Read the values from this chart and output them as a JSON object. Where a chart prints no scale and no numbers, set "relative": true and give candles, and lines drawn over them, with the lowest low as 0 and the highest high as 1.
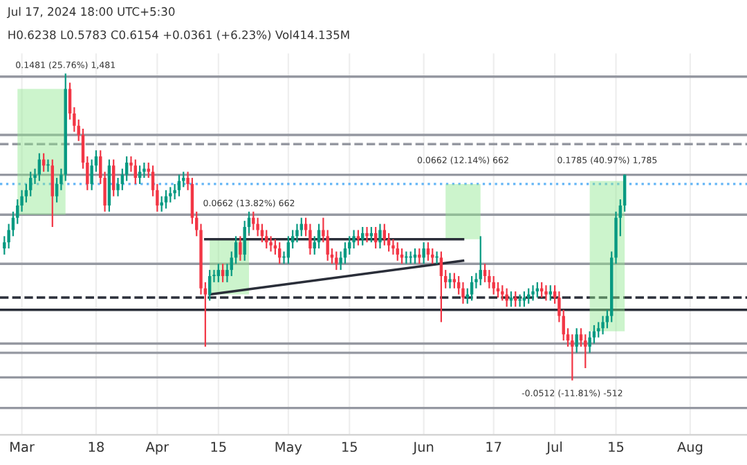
{
  "chart_data": {
    "type": "candlestick",
    "relative": true,
    "annotations": [
      "Jul 17, 2024 18:00 UTC+5:30",
      "H0.6238 L0.5783 C0.6154 +0.0361 (+6.23%) Vol414.135M",
      {
        "text": "0.1481 (25.76%) 1,481",
        "x": "2024-03-11",
        "y": 1.0
      },
      {
        "text": "0.0662 (13.82%) 662",
        "x": "2024-04-22",
        "y": 0.46
      },
      {
        "text": "0.0662 (12.14%) 662",
        "x": "2024-06-10",
        "y": 0.69
      },
      {
        "text": "0.1785 (40.97%) 1,785",
        "x": "2024-07-13",
        "y": 0.69
      },
      {
        "text": "-0.0512 (-11.81%) -512",
        "x": "2024-07-05",
        "y": 0.0
      }
    ],
    "colors": [
      "#089981",
      "#089981",
      "#089981",
      "#089981",
      "#089981",
      "#089981",
      "#089981",
      "#089981",
      "#089981",
      "#f23645",
      "#089981",
      "#f23645",
      "#089981",
      "#089981",
      "#089981",
      "#f23645",
      "#f23645",
      "#f23645",
      "#f23645",
      "#f23645",
      "#089981",
      "#089981",
      "#f23645",
      "#f23645",
      "#089981",
      "#f23645",
      "#089981",
      "#089981",
      "#089981",
      "#f23645",
      "#f23645",
      "#089981",
      "#089981",
      "#f23645",
      "#f23645",
      "#f23645",
      "#089981",
      "#089981",
      "#089981",
      "#089981",
      "#089981",
      "#089981",
      "#f23645",
      "#f23645",
      "#f23645",
      "#f23645",
      "#f23645",
      "#089981",
      "#089981",
      "#089981",
      "#f23645",
      "#089981",
      "#089981",
      "#089981",
      "#f23645",
      "#089981",
      "#089981",
      "#f23645",
      "#f23645",
      "#f23645",
      "#f23645",
      "#f23645",
      "#f23645",
      "#f23645",
      "#089981",
      "#089981",
      "#089981",
      "#089981",
      "#089981",
      "#f23645",
      "#f23645",
      "#089981",
      "#089981",
      "#f23645",
      "#f23645",
      "#f23645",
      "#f23645",
      "#089981",
      "#089981",
      "#089981",
      "#089981",
      "#f23645",
      "#089981",
      "#f23645",
      "#089981",
      "#f23645",
      "#089981",
      "#f23645",
      "#f23645",
      "#f23645",
      "#f23645",
      "#f23645",
      "#089981",
      "#089981",
      "#089981",
      "#f23645",
      "#089981",
      "#f23645",
      "#f23645",
      "#089981",
      "#f23645",
      "#f23645",
      "#089981",
      "#f23645",
      "#f23645",
      "#f23645",
      "#089981",
      "#089981",
      "#089981",
      "#089981",
      "#f23645",
      "#f23645",
      "#f23645",
      "#f23645",
      "#f23645",
      "#f23645",
      "#089981",
      "#f23645",
      "#089981",
      "#089981",
      "#089981",
      "#089981",
      "#089981",
      "#f23645",
      "#f23645",
      "#089981",
      "#f23645",
      "#f23645",
      "#f23645",
      "#f23645",
      "#f23645",
      "#089981",
      "#f23645",
      "#f23645",
      "#089981",
      "#089981",
      "#089981",
      "#089981",
      "#089981",
      "#089981",
      "#089981",
      "#089981",
      "#089981"
    ],
    "x": [
      "2024-02-26",
      "2024-02-27",
      "2024-02-28",
      "2024-02-29",
      "2024-03-01",
      "2024-03-02",
      "2024-03-03",
      "2024-03-04",
      "2024-03-05",
      "2024-03-06",
      "2024-03-07",
      "2024-03-08",
      "2024-03-09",
      "2024-03-10",
      "2024-03-11",
      "2024-03-12",
      "2024-03-13",
      "2024-03-14",
      "2024-03-15",
      "2024-03-16",
      "2024-03-17",
      "2024-03-18",
      "2024-03-19",
      "2024-03-20",
      "2024-03-21",
      "2024-03-22",
      "2024-03-23",
      "2024-03-24",
      "2024-03-25",
      "2024-03-26",
      "2024-03-27",
      "2024-03-28",
      "2024-03-29",
      "2024-03-30",
      "2024-03-31",
      "2024-04-01",
      "2024-04-02",
      "2024-04-03",
      "2024-04-04",
      "2024-04-05",
      "2024-04-06",
      "2024-04-07",
      "2024-04-08",
      "2024-04-09",
      "2024-04-10",
      "2024-04-11",
      "2024-04-12",
      "2024-04-13",
      "2024-04-14",
      "2024-04-15",
      "2024-04-16",
      "2024-04-17",
      "2024-04-18",
      "2024-04-19",
      "2024-04-20",
      "2024-04-21",
      "2024-04-22",
      "2024-04-23",
      "2024-04-24",
      "2024-04-25",
      "2024-04-26",
      "2024-04-27",
      "2024-04-28",
      "2024-04-29",
      "2024-04-30",
      "2024-05-01",
      "2024-05-02",
      "2024-05-03",
      "2024-05-04",
      "2024-05-05",
      "2024-05-06",
      "2024-05-07",
      "2024-05-08",
      "2024-05-09",
      "2024-05-10",
      "2024-05-11",
      "2024-05-12",
      "2024-05-13",
      "2024-05-14",
      "2024-05-15",
      "2024-05-16",
      "2024-05-17",
      "2024-05-18",
      "2024-05-19",
      "2024-05-20",
      "2024-05-21",
      "2024-05-22",
      "2024-05-23",
      "2024-05-24",
      "2024-05-25",
      "2024-05-26",
      "2024-05-27",
      "2024-05-28",
      "2024-05-29",
      "2024-05-30",
      "2024-05-31",
      "2024-06-01",
      "2024-06-02",
      "2024-06-03",
      "2024-06-04",
      "2024-06-05",
      "2024-06-06",
      "2024-06-07",
      "2024-06-08",
      "2024-06-09",
      "2024-06-10",
      "2024-06-11",
      "2024-06-12",
      "2024-06-13",
      "2024-06-14",
      "2024-06-15",
      "2024-06-16",
      "2024-06-17",
      "2024-06-18",
      "2024-06-19",
      "2024-06-20",
      "2024-06-21",
      "2024-06-22",
      "2024-06-23",
      "2024-06-24",
      "2024-06-25",
      "2024-06-26",
      "2024-06-27",
      "2024-06-28",
      "2024-06-29",
      "2024-06-30",
      "2024-07-01",
      "2024-07-02",
      "2024-07-03",
      "2024-07-04",
      "2024-07-05",
      "2024-07-06",
      "2024-07-07",
      "2024-07-08",
      "2024-07-09",
      "2024-07-10",
      "2024-07-11",
      "2024-07-12",
      "2024-07-13",
      "2024-07-14",
      "2024-07-15",
      "2024-07-16",
      "2024-07-17"
    ],
    "ohlc": [
      [
        0.43,
        0.47,
        0.41,
        0.45
      ],
      [
        0.45,
        0.51,
        0.43,
        0.49
      ],
      [
        0.49,
        0.55,
        0.47,
        0.53
      ],
      [
        0.53,
        0.59,
        0.51,
        0.57
      ],
      [
        0.57,
        0.62,
        0.55,
        0.6
      ],
      [
        0.6,
        0.64,
        0.58,
        0.62
      ],
      [
        0.62,
        0.68,
        0.6,
        0.66
      ],
      [
        0.66,
        0.69,
        0.64,
        0.67
      ],
      [
        0.67,
        0.74,
        0.65,
        0.72
      ],
      [
        0.72,
        0.74,
        0.68,
        0.7
      ],
      [
        0.7,
        0.72,
        0.68,
        0.7
      ],
      [
        0.7,
        0.72,
        0.5,
        0.6
      ],
      [
        0.6,
        0.66,
        0.58,
        0.64
      ],
      [
        0.64,
        0.69,
        0.62,
        0.67
      ],
      [
        0.67,
        1.0,
        0.65,
        0.95
      ],
      [
        0.95,
        0.97,
        0.85,
        0.87
      ],
      [
        0.87,
        0.89,
        0.81,
        0.83
      ],
      [
        0.83,
        0.85,
        0.78,
        0.8
      ],
      [
        0.8,
        0.82,
        0.69,
        0.71
      ],
      [
        0.71,
        0.73,
        0.62,
        0.64
      ],
      [
        0.64,
        0.72,
        0.62,
        0.7
      ],
      [
        0.7,
        0.75,
        0.68,
        0.73
      ],
      [
        0.73,
        0.75,
        0.64,
        0.66
      ],
      [
        0.66,
        0.68,
        0.55,
        0.57
      ],
      [
        0.57,
        0.72,
        0.55,
        0.7
      ],
      [
        0.7,
        0.72,
        0.6,
        0.62
      ],
      [
        0.62,
        0.66,
        0.6,
        0.64
      ],
      [
        0.64,
        0.69,
        0.62,
        0.67
      ],
      [
        0.67,
        0.73,
        0.65,
        0.71
      ],
      [
        0.71,
        0.73,
        0.68,
        0.7
      ],
      [
        0.7,
        0.72,
        0.64,
        0.66
      ],
      [
        0.66,
        0.7,
        0.64,
        0.68
      ],
      [
        0.68,
        0.71,
        0.66,
        0.69
      ],
      [
        0.69,
        0.71,
        0.66,
        0.68
      ],
      [
        0.68,
        0.7,
        0.6,
        0.62
      ],
      [
        0.62,
        0.64,
        0.55,
        0.57
      ],
      [
        0.57,
        0.6,
        0.55,
        0.58
      ],
      [
        0.58,
        0.62,
        0.56,
        0.6
      ],
      [
        0.6,
        0.63,
        0.58,
        0.61
      ],
      [
        0.61,
        0.64,
        0.59,
        0.62
      ],
      [
        0.62,
        0.67,
        0.6,
        0.65
      ],
      [
        0.65,
        0.68,
        0.63,
        0.66
      ],
      [
        0.66,
        0.68,
        0.62,
        0.64
      ],
      [
        0.64,
        0.66,
        0.51,
        0.53
      ],
      [
        0.53,
        0.55,
        0.47,
        0.49
      ],
      [
        0.49,
        0.51,
        0.28,
        0.3
      ],
      [
        0.3,
        0.32,
        0.11,
        0.28
      ],
      [
        0.28,
        0.36,
        0.26,
        0.34
      ],
      [
        0.34,
        0.36,
        0.32,
        0.34
      ],
      [
        0.34,
        0.38,
        0.32,
        0.36
      ],
      [
        0.36,
        0.38,
        0.32,
        0.34
      ],
      [
        0.34,
        0.38,
        0.32,
        0.36
      ],
      [
        0.36,
        0.42,
        0.34,
        0.4
      ],
      [
        0.4,
        0.47,
        0.38,
        0.45
      ],
      [
        0.45,
        0.47,
        0.39,
        0.41
      ],
      [
        0.41,
        0.52,
        0.39,
        0.5
      ],
      [
        0.5,
        0.55,
        0.48,
        0.53
      ],
      [
        0.53,
        0.55,
        0.49,
        0.51
      ],
      [
        0.51,
        0.53,
        0.47,
        0.49
      ],
      [
        0.49,
        0.51,
        0.45,
        0.47
      ],
      [
        0.47,
        0.49,
        0.43,
        0.45
      ],
      [
        0.45,
        0.47,
        0.42,
        0.44
      ],
      [
        0.44,
        0.46,
        0.41,
        0.43
      ],
      [
        0.43,
        0.45,
        0.38,
        0.4
      ],
      [
        0.4,
        0.42,
        0.38,
        0.4
      ],
      [
        0.4,
        0.47,
        0.38,
        0.45
      ],
      [
        0.45,
        0.49,
        0.43,
        0.47
      ],
      [
        0.47,
        0.51,
        0.45,
        0.49
      ],
      [
        0.49,
        0.53,
        0.47,
        0.51
      ],
      [
        0.51,
        0.53,
        0.47,
        0.49
      ],
      [
        0.49,
        0.51,
        0.41,
        0.43
      ],
      [
        0.43,
        0.47,
        0.41,
        0.45
      ],
      [
        0.45,
        0.51,
        0.43,
        0.49
      ],
      [
        0.49,
        0.53,
        0.45,
        0.47
      ],
      [
        0.47,
        0.49,
        0.39,
        0.41
      ],
      [
        0.41,
        0.43,
        0.38,
        0.4
      ],
      [
        0.4,
        0.42,
        0.36,
        0.38
      ],
      [
        0.38,
        0.42,
        0.36,
        0.4
      ],
      [
        0.4,
        0.45,
        0.38,
        0.43
      ],
      [
        0.43,
        0.47,
        0.41,
        0.45
      ],
      [
        0.45,
        0.49,
        0.43,
        0.47
      ],
      [
        0.47,
        0.49,
        0.44,
        0.46
      ],
      [
        0.46,
        0.5,
        0.44,
        0.48
      ],
      [
        0.48,
        0.5,
        0.45,
        0.47
      ],
      [
        0.47,
        0.5,
        0.45,
        0.48
      ],
      [
        0.48,
        0.5,
        0.43,
        0.45
      ],
      [
        0.45,
        0.51,
        0.43,
        0.49
      ],
      [
        0.49,
        0.51,
        0.44,
        0.46
      ],
      [
        0.46,
        0.48,
        0.42,
        0.44
      ],
      [
        0.44,
        0.46,
        0.41,
        0.43
      ],
      [
        0.43,
        0.45,
        0.39,
        0.41
      ],
      [
        0.41,
        0.43,
        0.38,
        0.4
      ],
      [
        0.4,
        0.42,
        0.38,
        0.4
      ],
      [
        0.4,
        0.42,
        0.38,
        0.4
      ],
      [
        0.4,
        0.43,
        0.38,
        0.41
      ],
      [
        0.41,
        0.43,
        0.38,
        0.4
      ],
      [
        0.4,
        0.45,
        0.38,
        0.43
      ],
      [
        0.43,
        0.45,
        0.39,
        0.41
      ],
      [
        0.41,
        0.43,
        0.38,
        0.4
      ],
      [
        0.4,
        0.42,
        0.38,
        0.4
      ],
      [
        0.4,
        0.42,
        0.19,
        0.34
      ],
      [
        0.34,
        0.36,
        0.3,
        0.32
      ],
      [
        0.32,
        0.35,
        0.3,
        0.33
      ],
      [
        0.33,
        0.35,
        0.3,
        0.32
      ],
      [
        0.32,
        0.34,
        0.28,
        0.3
      ],
      [
        0.3,
        0.32,
        0.25,
        0.27
      ],
      [
        0.27,
        0.3,
        0.25,
        0.28
      ],
      [
        0.28,
        0.34,
        0.26,
        0.32
      ],
      [
        0.32,
        0.35,
        0.3,
        0.33
      ],
      [
        0.33,
        0.47,
        0.31,
        0.36
      ],
      [
        0.36,
        0.38,
        0.32,
        0.34
      ],
      [
        0.34,
        0.36,
        0.3,
        0.32
      ],
      [
        0.32,
        0.34,
        0.28,
        0.3
      ],
      [
        0.3,
        0.32,
        0.27,
        0.29
      ],
      [
        0.29,
        0.31,
        0.26,
        0.28
      ],
      [
        0.28,
        0.3,
        0.24,
        0.26
      ],
      [
        0.26,
        0.29,
        0.24,
        0.27
      ],
      [
        0.27,
        0.29,
        0.24,
        0.26
      ],
      [
        0.26,
        0.28,
        0.24,
        0.26
      ],
      [
        0.26,
        0.29,
        0.24,
        0.27
      ],
      [
        0.27,
        0.3,
        0.25,
        0.28
      ],
      [
        0.28,
        0.31,
        0.26,
        0.29
      ],
      [
        0.29,
        0.32,
        0.27,
        0.3
      ],
      [
        0.3,
        0.32,
        0.27,
        0.29
      ],
      [
        0.29,
        0.31,
        0.26,
        0.28
      ],
      [
        0.28,
        0.31,
        0.26,
        0.29
      ],
      [
        0.29,
        0.31,
        0.25,
        0.27
      ],
      [
        0.27,
        0.29,
        0.19,
        0.21
      ],
      [
        0.21,
        0.23,
        0.13,
        0.15
      ],
      [
        0.15,
        0.17,
        0.11,
        0.13
      ],
      [
        0.13,
        0.15,
        0.0,
        0.11
      ],
      [
        0.11,
        0.17,
        0.09,
        0.15
      ],
      [
        0.15,
        0.17,
        0.11,
        0.13
      ],
      [
        0.13,
        0.15,
        0.04,
        0.11
      ],
      [
        0.11,
        0.16,
        0.09,
        0.14
      ],
      [
        0.14,
        0.18,
        0.12,
        0.16
      ],
      [
        0.16,
        0.19,
        0.14,
        0.17
      ],
      [
        0.17,
        0.21,
        0.15,
        0.19
      ],
      [
        0.19,
        0.23,
        0.17,
        0.21
      ],
      [
        0.21,
        0.42,
        0.19,
        0.4
      ],
      [
        0.4,
        0.55,
        0.38,
        0.53
      ],
      [
        0.53,
        0.59,
        0.47,
        0.57
      ],
      [
        0.57,
        0.67,
        0.55,
        0.67
      ]
    ],
    "series": [
      {
        "type": "area",
        "x": [
          "2024-02-29",
          "2024-03-11",
          "2024-03-11",
          "2024-02-29"
        ],
        "values": [
          0.95,
          0.95,
          0.54,
          0.54
        ],
        "color": "#8ee68e"
      },
      {
        "type": "area",
        "x": [
          "2024-04-13",
          "2024-04-22",
          "2024-04-22",
          "2024-04-13"
        ],
        "values": [
          0.46,
          0.46,
          0.28,
          0.28
        ],
        "color": "#8ee68e"
      },
      {
        "type": "area",
        "x": [
          "2024-06-06",
          "2024-06-14",
          "2024-06-14",
          "2024-06-06"
        ],
        "values": [
          0.64,
          0.64,
          0.46,
          0.46
        ],
        "color": "#8ee68e"
      },
      {
        "type": "area",
        "x": [
          "2024-07-09",
          "2024-07-17",
          "2024-07-17",
          "2024-07-09"
        ],
        "values": [
          0.65,
          0.65,
          0.16,
          0.16
        ],
        "color": "#8ee68e"
      },
      {
        "type": "line",
        "x": [
          "2024-04-12",
          "2024-06-10"
        ],
        "values": [
          0.46,
          0.46
        ],
        "color": "#2a2e39"
      },
      {
        "type": "line",
        "x": [
          "2024-04-13",
          "2024-06-10"
        ],
        "values": [
          0.28,
          0.39
        ],
        "color": "#2a2e39"
      }
    ],
    "ref_lines": [
      {
        "axis": "y",
        "value": 0.99,
        "color": "#9598a1"
      },
      {
        "axis": "y",
        "value": 0.8,
        "color": "#9598a1"
      },
      {
        "axis": "y",
        "value": 0.77,
        "color": "#9598a1",
        "line_style": "dashed"
      },
      {
        "axis": "y",
        "value": 0.67,
        "color": "#9598a1"
      },
      {
        "axis": "y",
        "value": 0.64,
        "color": "#64b5f6",
        "line_style": "dotted"
      },
      {
        "axis": "y",
        "value": 0.54,
        "color": "#9598a1"
      },
      {
        "axis": "y",
        "value": 0.38,
        "color": "#9598a1"
      },
      {
        "axis": "y",
        "value": 0.27,
        "color": "#2a2e39",
        "line_style": "dashed"
      },
      {
        "axis": "y",
        "value": 0.23,
        "color": "#2a2e39"
      },
      {
        "axis": "y",
        "value": 0.12,
        "color": "#9598a1"
      },
      {
        "axis": "y",
        "value": 0.09,
        "color": "#9598a1"
      },
      {
        "axis": "y",
        "value": 0.01,
        "color": "#9598a1"
      },
      {
        "axis": "y",
        "value": -0.09,
        "color": "#9598a1"
      }
    ],
    "xlim": [
      "2024-02-25",
      "2024-08-14"
    ],
    "xticks": [
      {
        "value": "2024-03-01",
        "label": "Mar"
      },
      {
        "value": "2024-03-18",
        "label": "18"
      },
      {
        "value": "2024-04-01",
        "label": "Apr"
      },
      {
        "value": "2024-04-15",
        "label": "15"
      },
      {
        "value": "2024-05-01",
        "label": "May"
      },
      {
        "value": "2024-05-15",
        "label": "15"
      },
      {
        "value": "2024-06-01",
        "label": "Jun"
      },
      {
        "value": "2024-06-17",
        "label": "17"
      },
      {
        "value": "2024-07-01",
        "label": "Jul"
      },
      {
        "value": "2024-07-15",
        "label": "15"
      },
      {
        "value": "2024-08-01",
        "label": "Aug"
      }
    ],
    "grid": "x",
    "tick_labels": "x"
  }
}
